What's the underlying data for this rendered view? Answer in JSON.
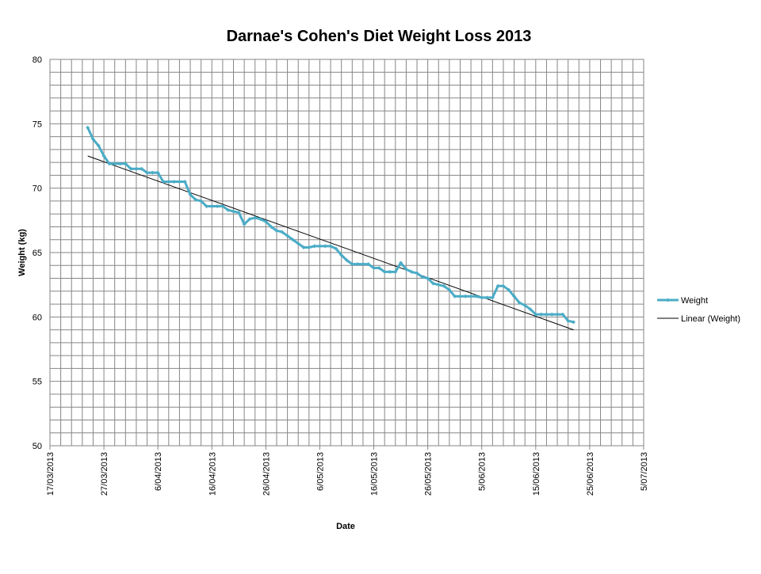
{
  "chart_data": {
    "type": "line",
    "title": "Darnae's Cohen's Diet Weight Loss 2013",
    "xlabel": "Date",
    "ylabel": "Weight (kg)",
    "ylim": [
      50,
      80
    ],
    "y_ticks": [
      50,
      55,
      60,
      65,
      70,
      75,
      80
    ],
    "xlim": [
      "2013-03-17",
      "2013-07-05"
    ],
    "x_tick_labels": [
      "17/03/2013",
      "27/03/2013",
      "6/04/2013",
      "16/04/2013",
      "26/04/2013",
      "6/05/2013",
      "16/05/2013",
      "26/05/2013",
      "5/06/2013",
      "15/06/2013",
      "25/06/2013",
      "5/07/2013"
    ],
    "grid": true,
    "legend_position": "right",
    "colors": {
      "weight": "#4BACC6",
      "trend": "#000000",
      "grid": "#868686"
    },
    "series": [
      {
        "name": "Weight",
        "x": [
          "2013-03-24",
          "2013-03-25",
          "2013-03-26",
          "2013-03-27",
          "2013-03-28",
          "2013-03-29",
          "2013-03-30",
          "2013-03-31",
          "2013-04-01",
          "2013-04-02",
          "2013-04-03",
          "2013-04-04",
          "2013-04-05",
          "2013-04-06",
          "2013-04-07",
          "2013-04-08",
          "2013-04-09",
          "2013-04-10",
          "2013-04-11",
          "2013-04-12",
          "2013-04-13",
          "2013-04-14",
          "2013-04-15",
          "2013-04-16",
          "2013-04-17",
          "2013-04-18",
          "2013-04-19",
          "2013-04-20",
          "2013-04-21",
          "2013-04-22",
          "2013-04-23",
          "2013-04-24",
          "2013-04-25",
          "2013-04-26",
          "2013-04-27",
          "2013-04-28",
          "2013-04-29",
          "2013-04-30",
          "2013-05-01",
          "2013-05-02",
          "2013-05-03",
          "2013-05-04",
          "2013-05-05",
          "2013-05-06",
          "2013-05-07",
          "2013-05-08",
          "2013-05-09",
          "2013-05-10",
          "2013-05-11",
          "2013-05-12",
          "2013-05-13",
          "2013-05-14",
          "2013-05-15",
          "2013-05-16",
          "2013-05-17",
          "2013-05-18",
          "2013-05-19",
          "2013-05-20",
          "2013-05-21",
          "2013-05-22",
          "2013-05-23",
          "2013-05-24",
          "2013-05-25",
          "2013-05-26",
          "2013-05-27",
          "2013-05-28",
          "2013-05-29",
          "2013-05-30",
          "2013-05-31",
          "2013-06-01",
          "2013-06-02",
          "2013-06-03",
          "2013-06-04",
          "2013-06-05",
          "2013-06-06",
          "2013-06-07",
          "2013-06-08",
          "2013-06-09",
          "2013-06-10",
          "2013-06-11",
          "2013-06-12",
          "2013-06-13",
          "2013-06-14",
          "2013-06-15",
          "2013-06-16",
          "2013-06-17",
          "2013-06-18",
          "2013-06-19",
          "2013-06-20",
          "2013-06-21",
          "2013-06-22"
        ],
        "values": [
          74.7,
          73.8,
          73.3,
          72.5,
          71.9,
          71.9,
          71.9,
          71.9,
          71.5,
          71.5,
          71.5,
          71.2,
          71.2,
          71.2,
          70.5,
          70.5,
          70.5,
          70.5,
          70.5,
          69.5,
          69.1,
          69.0,
          68.6,
          68.6,
          68.6,
          68.6,
          68.3,
          68.2,
          68.1,
          67.2,
          67.6,
          67.7,
          67.6,
          67.4,
          67.0,
          66.7,
          66.6,
          66.3,
          66.0,
          65.7,
          65.4,
          65.4,
          65.5,
          65.5,
          65.5,
          65.5,
          65.3,
          64.8,
          64.4,
          64.1,
          64.1,
          64.1,
          64.1,
          63.8,
          63.8,
          63.5,
          63.5,
          63.5,
          64.2,
          63.7,
          63.5,
          63.4,
          63.1,
          63.0,
          62.6,
          62.5,
          62.4,
          62.1,
          61.6,
          61.6,
          61.6,
          61.6,
          61.6,
          61.5,
          61.5,
          61.5,
          62.4,
          62.4,
          62.1,
          61.6,
          61.1,
          60.9,
          60.6,
          60.2,
          60.2,
          60.2,
          60.2,
          60.2,
          60.2,
          59.7,
          59.6
        ]
      },
      {
        "name": "Linear (Weight)",
        "x": [
          "2013-03-24",
          "2013-06-22"
        ],
        "values": [
          72.5,
          59.0
        ]
      }
    ]
  }
}
